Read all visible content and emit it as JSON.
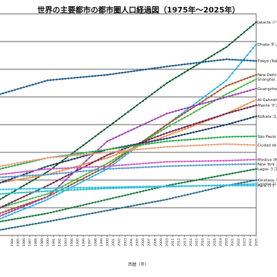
{
  "chart_data": {
    "type": "line",
    "title": "世界の主要都市の都市圏人口経過図（1975年～2025年）",
    "xlabel": "西暦（年）",
    "ylabel": "",
    "xlim": [
      1982,
      2025
    ],
    "ylim": [
      0,
      40
    ],
    "y_gridlines": [
      5,
      10,
      15,
      20,
      25,
      30,
      35,
      40
    ],
    "grid": "horizontal",
    "x": [
      1984,
      1985,
      1986,
      1987,
      1988,
      1989,
      1990,
      1991,
      1992,
      1993,
      1994,
      1995,
      1996,
      1997,
      1998,
      1999,
      2000,
      2001,
      2002,
      2003,
      2004,
      2005,
      2006,
      2007,
      2008,
      2009,
      2010,
      2011,
      2012,
      2013,
      2014,
      2015,
      2016,
      2017,
      2018,
      2019,
      2020,
      2021,
      2022,
      2023,
      2024,
      2025
    ],
    "series": [
      {
        "name": "Jakarta ジャカルタ",
        "color": "#0d5a2a",
        "endpoints": [
          [
            1982,
            6.5
          ],
          [
            1990,
            11.5
          ],
          [
            2000,
            19.5
          ],
          [
            2010,
            27.5
          ],
          [
            2020,
            34.0
          ],
          [
            2025,
            38.5
          ]
        ]
      },
      {
        "name": "Dhaka ダッカ",
        "color": "#2ab0e0",
        "endpoints": [
          [
            1982,
            3.0
          ],
          [
            1990,
            6.5
          ],
          [
            2000,
            12.0
          ],
          [
            2010,
            20.0
          ],
          [
            2020,
            28.0
          ],
          [
            2025,
            34.5
          ]
        ]
      },
      {
        "name": "Tōkyō (Tokyo) 東京",
        "color": "#1a5c88",
        "endpoints": [
          [
            1982,
            25.5
          ],
          [
            1990,
            28.0
          ],
          [
            2000,
            29.0
          ],
          [
            2010,
            30.5
          ],
          [
            2020,
            31.8
          ],
          [
            2025,
            31.5
          ]
        ]
      },
      {
        "name": "New Delhi ニューデリー",
        "color": "#a0522d",
        "endpoints": [
          [
            1982,
            4.0
          ],
          [
            1990,
            7.0
          ],
          [
            2000,
            12.5
          ],
          [
            2010,
            20.0
          ],
          [
            2020,
            27.0
          ],
          [
            2025,
            29.0
          ]
        ]
      },
      {
        "name": "Shanghai 上海",
        "color": "#44b844",
        "endpoints": [
          [
            1982,
            5.0
          ],
          [
            1990,
            7.5
          ],
          [
            2000,
            13.0
          ],
          [
            2010,
            19.5
          ],
          [
            2020,
            25.5
          ],
          [
            2025,
            28.2
          ]
        ]
      },
      {
        "name": "Guangzhou 広州",
        "color": "#a040b0",
        "endpoints": [
          [
            1982,
            3.5
          ],
          [
            1990,
            7.0
          ],
          [
            2000,
            17.0
          ],
          [
            2010,
            22.0
          ],
          [
            2020,
            25.0
          ],
          [
            2025,
            26.5
          ]
        ]
      },
      {
        "name": "Al-Qahirah (Cairo) カイロ",
        "color": "#f09048",
        "endpoints": [
          [
            1982,
            9.5
          ],
          [
            1990,
            11.0
          ],
          [
            2000,
            14.0
          ],
          [
            2010,
            18.0
          ],
          [
            2020,
            22.0
          ],
          [
            2025,
            24.5
          ]
        ]
      },
      {
        "name": "Manila マニラ",
        "color": "#702050",
        "endpoints": [
          [
            1982,
            5.0
          ],
          [
            1990,
            9.0
          ],
          [
            2000,
            14.5
          ],
          [
            2010,
            18.5
          ],
          [
            2020,
            22.0
          ],
          [
            2025,
            23.5
          ]
        ]
      },
      {
        "name": "Kolkata コルカタ",
        "color": "#1c3a60",
        "endpoints": [
          [
            1982,
            9.5
          ],
          [
            1990,
            12.5
          ],
          [
            2000,
            15.5
          ],
          [
            2010,
            17.5
          ],
          [
            2020,
            20.0
          ],
          [
            2025,
            21.5
          ]
        ]
      },
      {
        "name": "São Paulo サンパウロ",
        "color": "#30a850",
        "endpoints": [
          [
            1982,
            12.0
          ],
          [
            1990,
            14.0
          ],
          [
            2000,
            15.5
          ],
          [
            2010,
            17.0
          ],
          [
            2020,
            17.8
          ],
          [
            2025,
            17.9
          ]
        ]
      },
      {
        "name": "Ciudad de México メキシコシティ",
        "color": "#e8a080",
        "endpoints": [
          [
            1982,
            12.5
          ],
          [
            1990,
            14.0
          ],
          [
            2000,
            15.0
          ],
          [
            2010,
            16.0
          ],
          [
            2020,
            16.5
          ],
          [
            2025,
            16.3
          ]
        ]
      },
      {
        "name": "Moskva (Moscow) モスクワ",
        "color": "#d060c0",
        "endpoints": [
          [
            1982,
            11.0
          ],
          [
            1990,
            12.0
          ],
          [
            2000,
            12.5
          ],
          [
            2010,
            13.3
          ],
          [
            2020,
            13.5
          ],
          [
            2025,
            13.7
          ]
        ]
      },
      {
        "name": "New York ニューヨーク",
        "color": "#5a9ad0",
        "endpoints": [
          [
            1982,
            10.5
          ],
          [
            1990,
            11.0
          ],
          [
            2000,
            12.0
          ],
          [
            2010,
            12.5
          ],
          [
            2020,
            12.8
          ],
          [
            2025,
            12.9
          ]
        ]
      },
      {
        "name": "Lagos ラゴス",
        "color": "#1a7a3a",
        "endpoints": [
          [
            1982,
            2.5
          ],
          [
            1990,
            4.0
          ],
          [
            2000,
            6.5
          ],
          [
            2010,
            9.0
          ],
          [
            2020,
            11.0
          ],
          [
            2025,
            12.0
          ]
        ]
      },
      {
        "name": "Kinshasa キンシャサ",
        "color": "#2a6a8a",
        "endpoints": [
          [
            1982,
            1.0
          ],
          [
            1990,
            2.5
          ],
          [
            2000,
            4.5
          ],
          [
            2010,
            6.5
          ],
          [
            2020,
            9.0
          ],
          [
            2025,
            10.0
          ]
        ]
      },
      {
        "name": "London ロンドン",
        "color": "#30c0c0",
        "endpoints": [
          [
            1982,
            7.5
          ],
          [
            1990,
            8.0
          ],
          [
            2000,
            8.5
          ],
          [
            2010,
            8.8
          ],
          [
            2020,
            9.1
          ],
          [
            2025,
            9.3
          ]
        ]
      },
      {
        "name": "Paris パリ",
        "color": "#38c0e8",
        "endpoints": [
          [
            1982,
            8.3
          ],
          [
            1990,
            8.5
          ],
          [
            2000,
            8.7
          ],
          [
            2010,
            8.9
          ],
          [
            2020,
            9.0
          ],
          [
            2025,
            9.0
          ]
        ]
      }
    ]
  }
}
